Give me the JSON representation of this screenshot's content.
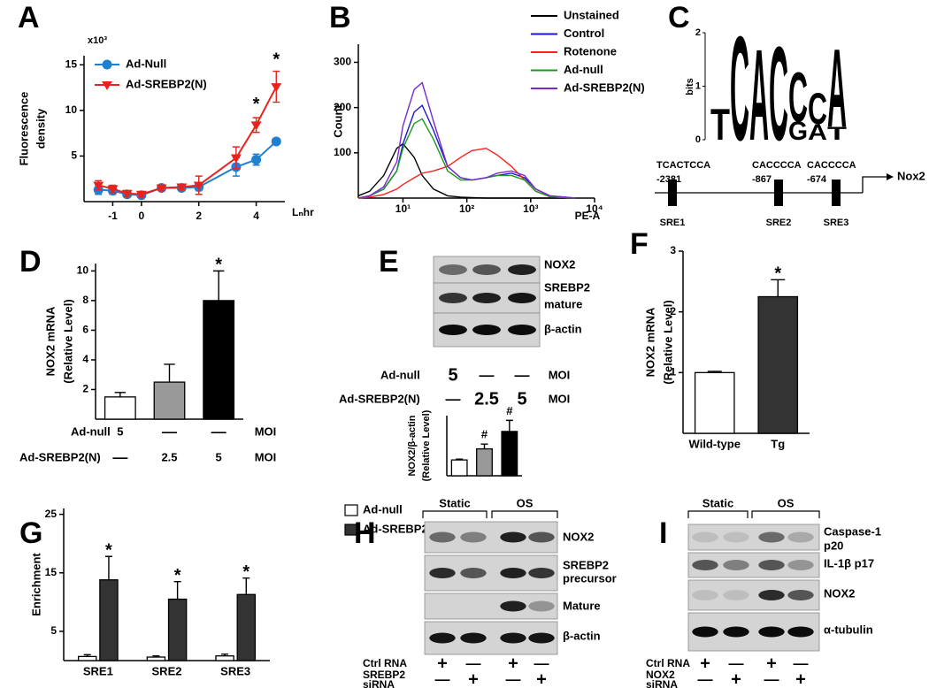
{
  "chart_data": [
    {
      "panel": "A",
      "type": "line",
      "y_label": [
        "Fluorescence",
        "density"
      ],
      "y_multiplier": "x10³",
      "x_label": "Lₙhr",
      "x": [
        -1.5,
        -1,
        -0.5,
        0,
        0.7,
        1.4,
        2,
        3.3,
        4,
        4.7
      ],
      "xlim": [
        -2,
        5
      ],
      "xticks": [
        -1,
        0,
        2,
        4
      ],
      "ylim": [
        0,
        16
      ],
      "yticks": [
        5,
        10,
        15
      ],
      "legend": "upper left",
      "series": [
        {
          "name": "Ad-Null",
          "color": "#1f7fd0",
          "marker": "circle",
          "values": [
            1.3,
            1.2,
            0.8,
            0.7,
            1.5,
            1.5,
            1.6,
            3.8,
            4.6,
            6.6
          ],
          "errors": [
            0.5,
            0.4,
            0.3,
            0.3,
            0.3,
            0.3,
            0.4,
            1.0,
            0.6,
            0.2
          ]
        },
        {
          "name": "Ad-SREBP2(N)",
          "color": "#e8231d",
          "marker": "triangle-down",
          "values": [
            1.8,
            1.4,
            0.9,
            0.8,
            1.5,
            1.6,
            1.8,
            4.8,
            8.4,
            12.6
          ],
          "errors": [
            0.5,
            0.4,
            0.3,
            0.3,
            0.3,
            0.3,
            1.0,
            1.2,
            0.8,
            1.7
          ]
        }
      ],
      "annotations": [
        {
          "text": "*",
          "x": 4,
          "y": 10.6
        },
        {
          "text": "*",
          "x": 4.7,
          "y": 15.5
        }
      ]
    },
    {
      "panel": "B",
      "type": "line",
      "y_label": "Count",
      "x_label": "PE-A",
      "log_x": true,
      "x": [
        2,
        3,
        5,
        8,
        10,
        15,
        20,
        30,
        50,
        80,
        120,
        200,
        300,
        500,
        800,
        1200,
        2000,
        5000
      ],
      "xlim": [
        2,
        10000
      ],
      "xticks": [
        {
          "value": 10,
          "label": "10¹"
        },
        {
          "value": 100,
          "label": "10²"
        },
        {
          "value": 1000,
          "label": "10³"
        },
        {
          "value": 10000,
          "label": "10⁴"
        }
      ],
      "ylim": [
        0,
        340
      ],
      "yticks": [
        100,
        200,
        300
      ],
      "legend": "upper right",
      "series": [
        {
          "name": "Unstained",
          "color": "#000000",
          "values": [
            5,
            15,
            50,
            110,
            120,
            90,
            50,
            20,
            5,
            2,
            1,
            0,
            0,
            0,
            0,
            0,
            0,
            0
          ]
        },
        {
          "name": "Control",
          "color": "#1a1acc",
          "values": [
            0,
            5,
            20,
            60,
            120,
            190,
            205,
            150,
            70,
            45,
            40,
            45,
            50,
            55,
            45,
            20,
            5,
            0
          ]
        },
        {
          "name": "Rotenone",
          "color": "#ff2020",
          "values": [
            0,
            2,
            8,
            20,
            30,
            45,
            55,
            60,
            70,
            90,
            105,
            110,
            95,
            70,
            40,
            15,
            3,
            0
          ]
        },
        {
          "name": "Ad-null",
          "color": "#1a9a1a",
          "values": [
            0,
            5,
            20,
            60,
            110,
            165,
            175,
            130,
            60,
            40,
            40,
            45,
            50,
            50,
            40,
            15,
            3,
            0
          ]
        },
        {
          "name": "Ad-SREBP2(N)",
          "color": "#7a2acc",
          "values": [
            0,
            5,
            25,
            80,
            160,
            240,
            255,
            170,
            70,
            45,
            40,
            45,
            55,
            60,
            50,
            20,
            5,
            0
          ]
        }
      ]
    },
    {
      "panel": "D",
      "type": "bar",
      "y_label": [
        "NOX2 mRNA",
        "(Relative Level)"
      ],
      "values": [
        1.5,
        2.5,
        8.0
      ],
      "errors": [
        0.3,
        1.2,
        2.0
      ],
      "colors": [
        "#ffffff",
        "#999999",
        "#000000"
      ],
      "ylim": [
        0,
        10.5
      ],
      "yticks": [
        2,
        4,
        6,
        8,
        10
      ],
      "annotations": [
        {
          "text": "*",
          "index": 2
        }
      ],
      "conditions": [
        {
          "label": "Ad-null",
          "cells": [
            "5",
            "—",
            "—"
          ],
          "unit": "MOI"
        },
        {
          "label": "Ad-SREBP2(N)",
          "cells": [
            "—",
            "2.5",
            "5"
          ],
          "unit": "MOI"
        }
      ]
    },
    {
      "type": "bar",
      "y_label": [
        "NOX2/β-actin",
        "(Relative Level)"
      ],
      "values": [
        1.0,
        1.7,
        2.8
      ],
      "errors": [
        0.05,
        0.3,
        0.7
      ],
      "colors": [
        "#ffffff",
        "#999999",
        "#000000"
      ],
      "ylim": [
        0,
        3.8
      ],
      "annotations": [
        {
          "text": "#",
          "index": 1
        },
        {
          "text": "#",
          "index": 2
        }
      ]
    },
    {
      "panel": "F",
      "type": "bar",
      "y_label": [
        "NOX2 mRNA",
        "(Relative Level)"
      ],
      "categories": [
        "Wild-type",
        "Tg"
      ],
      "values": [
        1.0,
        2.25
      ],
      "errors": [
        0.02,
        0.28
      ],
      "colors": [
        "#ffffff",
        "#333333"
      ],
      "ylim": [
        0,
        3
      ],
      "yticks": [
        1,
        2,
        3
      ],
      "annotations": [
        {
          "text": "*",
          "index": 1
        }
      ]
    },
    {
      "panel": "G",
      "type": "bar",
      "y_label": "Enrichment",
      "categories": [
        "SRE1",
        "SRE2",
        "SRE3"
      ],
      "series": [
        {
          "name": "Ad-null",
          "color": "#ffffff",
          "values": [
            0.7,
            0.6,
            0.8
          ],
          "errors": [
            0.3,
            0.2,
            0.3
          ]
        },
        {
          "name": "Ad-SREBP2",
          "color": "#333333",
          "values": [
            13.8,
            10.5,
            11.3
          ],
          "errors": [
            4.0,
            3.0,
            2.8
          ]
        }
      ],
      "ylim": [
        0,
        26
      ],
      "yticks": [
        5,
        15,
        25
      ],
      "legend": "upper right",
      "annotations": [
        {
          "text": "*",
          "series": 1,
          "index": 0
        },
        {
          "text": "*",
          "series": 1,
          "index": 1
        },
        {
          "text": "*",
          "series": 1,
          "index": 2
        }
      ]
    }
  ],
  "motif": {
    "panel": "C",
    "y_label": "bits",
    "ylim": [
      0,
      2
    ],
    "yticks": [
      0,
      1,
      2
    ],
    "positions": [
      [
        {
          "letter": "T",
          "color": "#e81e1e",
          "height": 0.6
        }
      ],
      [
        {
          "letter": "C",
          "color": "#1a1ae0",
          "height": 2.0
        }
      ],
      [
        {
          "letter": "A",
          "color": "#1aa01a",
          "height": 1.75
        }
      ],
      [
        {
          "letter": "C",
          "color": "#1a1ae0",
          "height": 1.8
        }
      ],
      [
        {
          "letter": "G",
          "color": "#f0a000",
          "height": 0.35
        },
        {
          "letter": "C",
          "color": "#1a1ae0",
          "height": 0.95
        }
      ],
      [
        {
          "letter": "A",
          "color": "#1aa01a",
          "height": 0.3
        },
        {
          "letter": "C",
          "color": "#1a1ae0",
          "height": 0.6
        }
      ],
      [
        {
          "letter": "T",
          "color": "#e81e1e",
          "height": 0.25
        },
        {
          "letter": "A",
          "color": "#1aa01a",
          "height": 1.5
        }
      ]
    ]
  },
  "promoter": {
    "gene": "Nox2",
    "sites": [
      {
        "sequence": "TCACTCCA",
        "position": "-2381",
        "name": "SRE1"
      },
      {
        "sequence": "CACCCCA",
        "position": "-867",
        "name": "SRE2"
      },
      {
        "sequence": "CACCCCA",
        "position": "-674",
        "name": "SRE3"
      }
    ]
  },
  "blots": [
    {
      "panel": "E",
      "bands": [
        [
          "NOX2"
        ],
        [
          "SREBP2",
          "mature"
        ],
        [
          "β-actin"
        ]
      ],
      "conditions": [
        {
          "label": "Ad-null",
          "cells": [
            "5",
            "—",
            "—"
          ],
          "unit": "MOI"
        },
        {
          "label": "Ad-SREBP2(N)",
          "cells": [
            "—",
            "2.5",
            "5"
          ],
          "unit": "MOI"
        }
      ]
    },
    {
      "panel": "H",
      "groups": [
        "Static",
        "OS"
      ],
      "bands": [
        [
          "NOX2"
        ],
        [
          "SREBP2",
          "precursor"
        ],
        [
          "Mature"
        ],
        [
          "β-actin"
        ]
      ],
      "conditions": [
        {
          "label": [
            "Ctrl RNA"
          ],
          "cells": [
            "+",
            "—",
            "+",
            "—"
          ]
        },
        {
          "label": [
            "SREBP2",
            "siRNA"
          ],
          "cells": [
            "—",
            "+",
            "—",
            "+"
          ]
        }
      ]
    },
    {
      "panel": "I",
      "groups": [
        "Static",
        "OS"
      ],
      "bands": [
        [
          "Caspase-1",
          "p20"
        ],
        [
          "IL-1β p17"
        ],
        [
          "NOX2"
        ],
        [
          "α-tubulin"
        ]
      ],
      "conditions": [
        {
          "label": [
            "Ctrl RNA"
          ],
          "cells": [
            "+",
            "—",
            "+",
            "—"
          ]
        },
        {
          "label": [
            "NOX2",
            "siRNA"
          ],
          "cells": [
            "—",
            "+",
            "—",
            "+"
          ]
        }
      ]
    }
  ]
}
